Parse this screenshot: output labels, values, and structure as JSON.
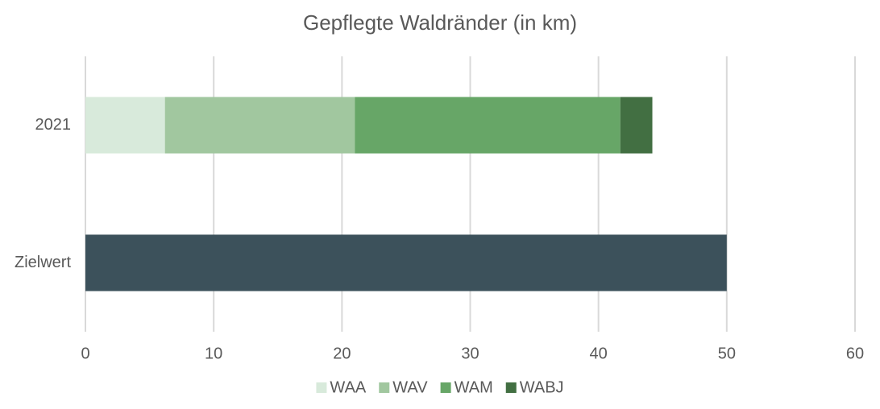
{
  "chart_data": {
    "type": "stacked-barh",
    "title": "Gepflegte Waldränder (in km)",
    "categories": [
      "2021",
      "Zielwert"
    ],
    "series": [
      {
        "name": "WAA",
        "color": "#d8eadb",
        "values": [
          6.2,
          null
        ]
      },
      {
        "name": "WAV",
        "color": "#a1c79f",
        "values": [
          14.8,
          null
        ]
      },
      {
        "name": "WAM",
        "color": "#67a667",
        "values": [
          20.7,
          null
        ]
      },
      {
        "name": "WABJ",
        "color": "#426f42",
        "values": [
          2.5,
          null
        ]
      },
      {
        "color": "#3c515b",
        "values": [
          null,
          50
        ]
      }
    ],
    "xlim": [
      0,
      60
    ],
    "xticks": [
      0,
      10,
      20,
      30,
      40,
      50,
      60
    ],
    "grid": true,
    "legend": "bottom"
  }
}
